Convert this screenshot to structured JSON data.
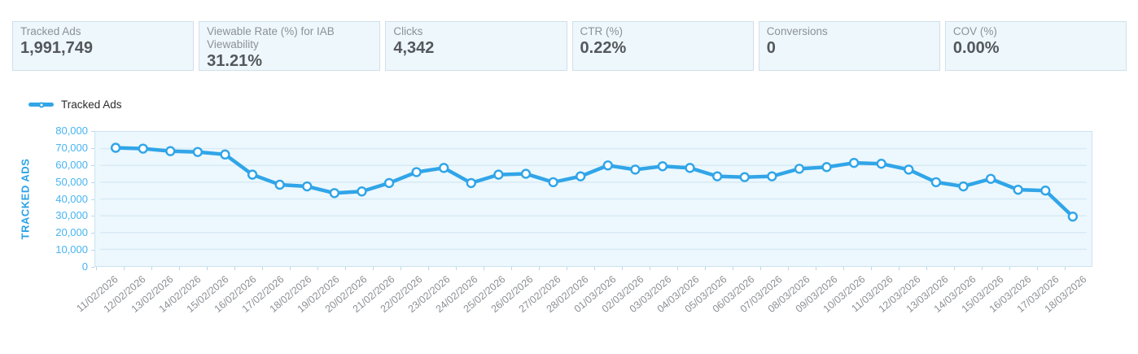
{
  "kpis": [
    {
      "label": "Tracked Ads",
      "value": "1,991,749"
    },
    {
      "label": "Viewable Rate (%) for IAB Viewability",
      "value": "31.21%"
    },
    {
      "label": "Clicks",
      "value": "4,342"
    },
    {
      "label": "CTR (%)",
      "value": "0.22%"
    },
    {
      "label": "Conversions",
      "value": "0"
    },
    {
      "label": "COV (%)",
      "value": "0.00%"
    }
  ],
  "legend": {
    "label": "Tracked Ads"
  },
  "chart_data": {
    "type": "line",
    "series_name": "Tracked Ads",
    "ylabel": "TRACKED ADS",
    "ylim": [
      0,
      80000
    ],
    "ytick_step": 10000,
    "ytick_labels": [
      "80,000",
      "70,000",
      "60,000",
      "50,000",
      "40,000",
      "30,000",
      "20,000",
      "10,000",
      "0"
    ],
    "grid": true,
    "legend_position": "top-left",
    "x": [
      "11/02/2026",
      "12/02/2026",
      "13/02/2026",
      "14/02/2026",
      "15/02/2026",
      "16/02/2026",
      "17/02/2026",
      "18/02/2026",
      "19/02/2026",
      "20/02/2026",
      "21/02/2026",
      "22/02/2026",
      "23/02/2026",
      "24/02/2026",
      "25/02/2026",
      "26/02/2026",
      "27/02/2026",
      "28/02/2026",
      "01/03/2026",
      "02/03/2026",
      "03/03/2026",
      "04/03/2026",
      "05/03/2026",
      "06/03/2026",
      "07/03/2026",
      "08/03/2026",
      "09/03/2026",
      "10/03/2026",
      "11/03/2026",
      "12/03/2026",
      "13/03/2026",
      "14/03/2026",
      "15/03/2026",
      "16/03/2026",
      "17/03/2026",
      "18/03/2026"
    ],
    "values": [
      70500,
      70000,
      68500,
      68000,
      66500,
      54500,
      48500,
      47500,
      43500,
      44500,
      49500,
      56000,
      58500,
      49500,
      54500,
      55000,
      50000,
      53500,
      60000,
      57500,
      59500,
      58500,
      53500,
      53000,
      53500,
      58000,
      59000,
      61500,
      61000,
      57500,
      50000,
      47500,
      52000,
      45500,
      45000,
      29500
    ]
  },
  "colors": {
    "line": "#31a5e8",
    "marker_fill": "#ffffff",
    "gridline": "#d8eaf5",
    "plot_bg": "#ecf8fd",
    "plot_border": "#cde3f0",
    "y_tick_label": "#47b4f1",
    "y_axis_title": "#2ba2e5",
    "x_tick_label": "#8c9095",
    "kpi_bg": "#eef7fc",
    "kpi_border": "#cfe0ec",
    "kpi_label": "#8b9299",
    "kpi_value": "#54585c"
  }
}
